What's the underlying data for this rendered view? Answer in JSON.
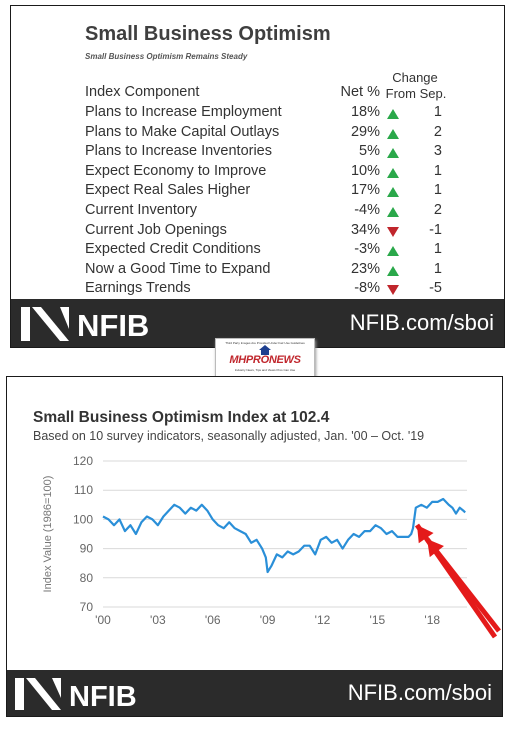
{
  "top_card": {
    "title": "Small Business Optimism",
    "subtitle": "Small Business Optimism Remains Steady",
    "headers": {
      "component": "Index Component",
      "net": "Net %",
      "change_line1": "Change",
      "change_line2": "From Sep."
    },
    "rows": [
      {
        "name": "Plans to Increase Employment",
        "net": "18%",
        "direction": "up",
        "change": "1"
      },
      {
        "name": "Plans to Make Capital Outlays",
        "net": "29%",
        "direction": "up",
        "change": "2"
      },
      {
        "name": "Plans to Increase Inventories",
        "net": "5%",
        "direction": "up",
        "change": "3"
      },
      {
        "name": "Expect Economy to Improve",
        "net": "10%",
        "direction": "up",
        "change": "1"
      },
      {
        "name": "Expect Real Sales Higher",
        "net": "17%",
        "direction": "up",
        "change": "1"
      },
      {
        "name": "Current Inventory",
        "net": "-4%",
        "direction": "up",
        "change": "2"
      },
      {
        "name": "Current Job Openings",
        "net": "34%",
        "direction": "down",
        "change": "-1"
      },
      {
        "name": "Expected Credit Conditions",
        "net": "-3%",
        "direction": "up",
        "change": "1"
      },
      {
        "name": "Now a Good Time to Expand",
        "net": "23%",
        "direction": "up",
        "change": "1"
      },
      {
        "name": "Earnings Trends",
        "net": "-8%",
        "direction": "down",
        "change": "-5"
      }
    ],
    "footer_logo": "NFIB",
    "footer_url": "NFIB.com/sboi"
  },
  "mid_logo": {
    "top_text": "Third Party Images Are Provided Under Fair Use Guidelines",
    "brand": "MHPRONEWS",
    "bottom_text": "Industry News, Tips and Views Pros Can Use"
  },
  "bottom_card": {
    "footer_logo": "NFIB",
    "footer_url": "NFIB.com/sboi"
  },
  "colors": {
    "line": "#2a8fd8",
    "up": "#2aa84a",
    "down": "#c0262c",
    "footer": "#2b2b2b",
    "annotation_arrow": "#e41a1a"
  },
  "chart_data": {
    "type": "line",
    "title": "Small Business Optimism Index at 102.4",
    "subtitle": "Based on 10 survey indicators, seasonally adjusted, Jan. '00 – Oct. '19",
    "ylabel": "Index Value (1986=100)",
    "xlabel": "",
    "ylim": [
      70,
      120
    ],
    "yticks": [
      70,
      80,
      90,
      100,
      110,
      120
    ],
    "xlim": [
      2000,
      2019.9
    ],
    "xticks": [
      {
        "v": 2000,
        "label": "'00"
      },
      {
        "v": 2003,
        "label": "'03"
      },
      {
        "v": 2006,
        "label": "'06"
      },
      {
        "v": 2009,
        "label": "'09"
      },
      {
        "v": 2012,
        "label": "'12"
      },
      {
        "v": 2015,
        "label": "'15"
      },
      {
        "v": 2018,
        "label": "'18"
      }
    ],
    "grid": true,
    "series": [
      {
        "x": [
          2000.0,
          2000.3,
          2000.6,
          2000.9,
          2001.2,
          2001.5,
          2001.8,
          2002.1,
          2002.4,
          2002.7,
          2003.0,
          2003.3,
          2003.6,
          2003.9,
          2004.2,
          2004.5,
          2004.8,
          2005.1,
          2005.4,
          2005.7,
          2006.0,
          2006.3,
          2006.6,
          2006.9,
          2007.2,
          2007.5,
          2007.8,
          2008.1,
          2008.4,
          2008.7,
          2008.9,
          2009.0,
          2009.2,
          2009.5,
          2009.8,
          2010.1,
          2010.4,
          2010.7,
          2011.0,
          2011.3,
          2011.6,
          2011.9,
          2012.2,
          2012.5,
          2012.8,
          2013.1,
          2013.4,
          2013.7,
          2014.0,
          2014.3,
          2014.6,
          2014.9,
          2015.2,
          2015.5,
          2015.8,
          2016.1,
          2016.4,
          2016.7,
          2016.85,
          2016.95,
          2017.1,
          2017.4,
          2017.7,
          2018.0,
          2018.3,
          2018.6,
          2018.9,
          2019.1,
          2019.3,
          2019.5,
          2019.7,
          2019.8
        ],
        "y": [
          101,
          100,
          98,
          100,
          96,
          98,
          95,
          99,
          101,
          100,
          98,
          101,
          103,
          105,
          104,
          102,
          104,
          103,
          105,
          103,
          100,
          98,
          97,
          99,
          97,
          96,
          95,
          92,
          93,
          90,
          87,
          82,
          84,
          88,
          87,
          89,
          88,
          89,
          91,
          91,
          88,
          93,
          94,
          92,
          93,
          90,
          93,
          95,
          94,
          96,
          96,
          98,
          97,
          95,
          96,
          94,
          94,
          94,
          95,
          97,
          104,
          105,
          104,
          106,
          106,
          107,
          105,
          104,
          102,
          104,
          103,
          102.4
        ]
      }
    ],
    "annotations": [
      {
        "type": "arrow",
        "count": 2,
        "color": "red"
      }
    ]
  }
}
